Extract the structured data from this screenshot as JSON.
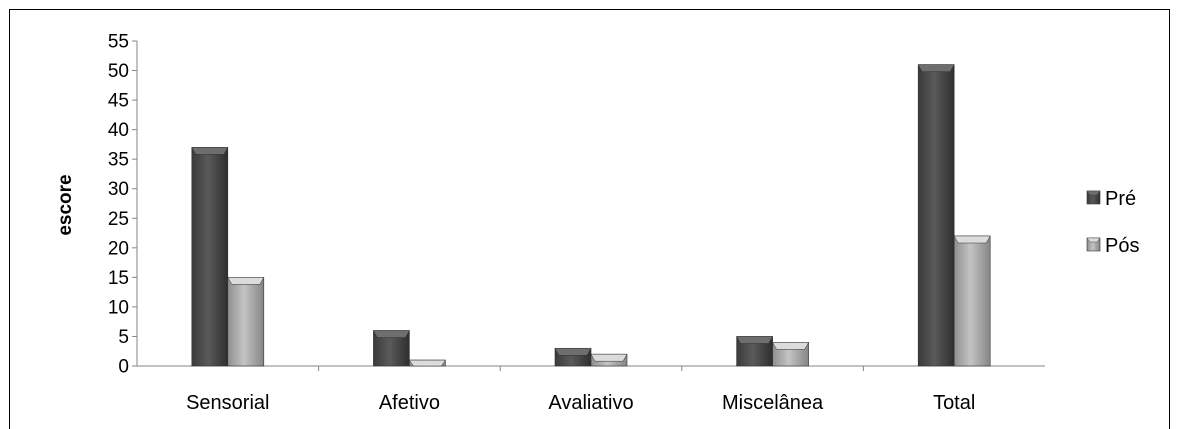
{
  "chart_data": {
    "type": "bar",
    "categories": [
      "Sensorial",
      "Afetivo",
      "Avaliativo",
      "Miscelânea",
      "Total"
    ],
    "series": [
      {
        "name": "Pré",
        "values": [
          37,
          6,
          3,
          5,
          51
        ],
        "color": "#4d4d4d"
      },
      {
        "name": "Pós",
        "values": [
          15,
          1,
          2,
          4,
          22
        ],
        "color": "#a8a8a8"
      }
    ],
    "title": "",
    "xlabel": "",
    "ylabel": "escore",
    "ylim": [
      0,
      55
    ],
    "yticks": [
      0,
      5,
      10,
      15,
      20,
      25,
      30,
      35,
      40,
      45,
      50,
      55
    ],
    "grid": false,
    "legend_position": "right"
  }
}
